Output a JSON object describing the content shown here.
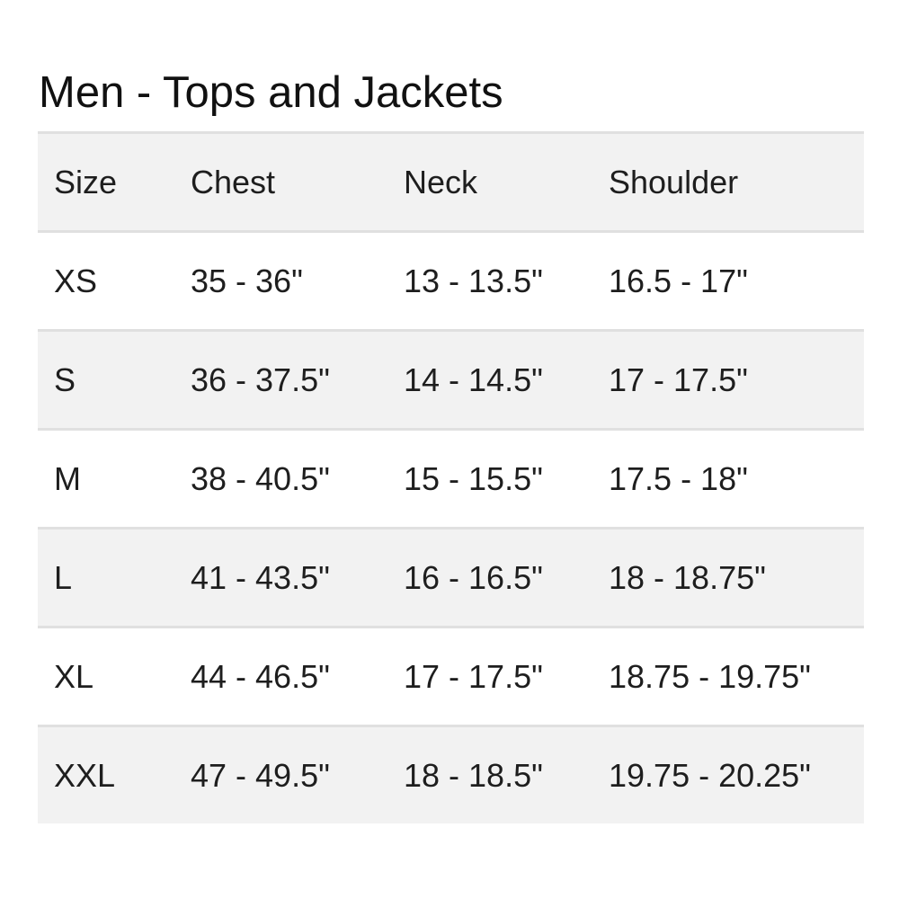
{
  "title": "Men - Tops and Jackets",
  "columns": [
    "Size",
    "Chest",
    "Neck",
    "Shoulder"
  ],
  "rows": [
    [
      "XS",
      "35 - 36\"",
      "13 - 13.5\"",
      "16.5 - 17\""
    ],
    [
      "S",
      "36 - 37.5\"",
      "14 - 14.5\"",
      "17 - 17.5\""
    ],
    [
      "M",
      "38 - 40.5\"",
      "15 - 15.5\"",
      "17.5 - 18\""
    ],
    [
      "L",
      "41 - 43.5\"",
      "16 - 16.5\"",
      "18 - 18.75\""
    ],
    [
      "XL",
      "44 - 46.5\"",
      "17 - 17.5\"",
      "18.75 - 19.75\""
    ],
    [
      "XXL",
      "47 - 49.5\"",
      "18 - 18.5\"",
      "19.75 - 20.25\""
    ]
  ]
}
